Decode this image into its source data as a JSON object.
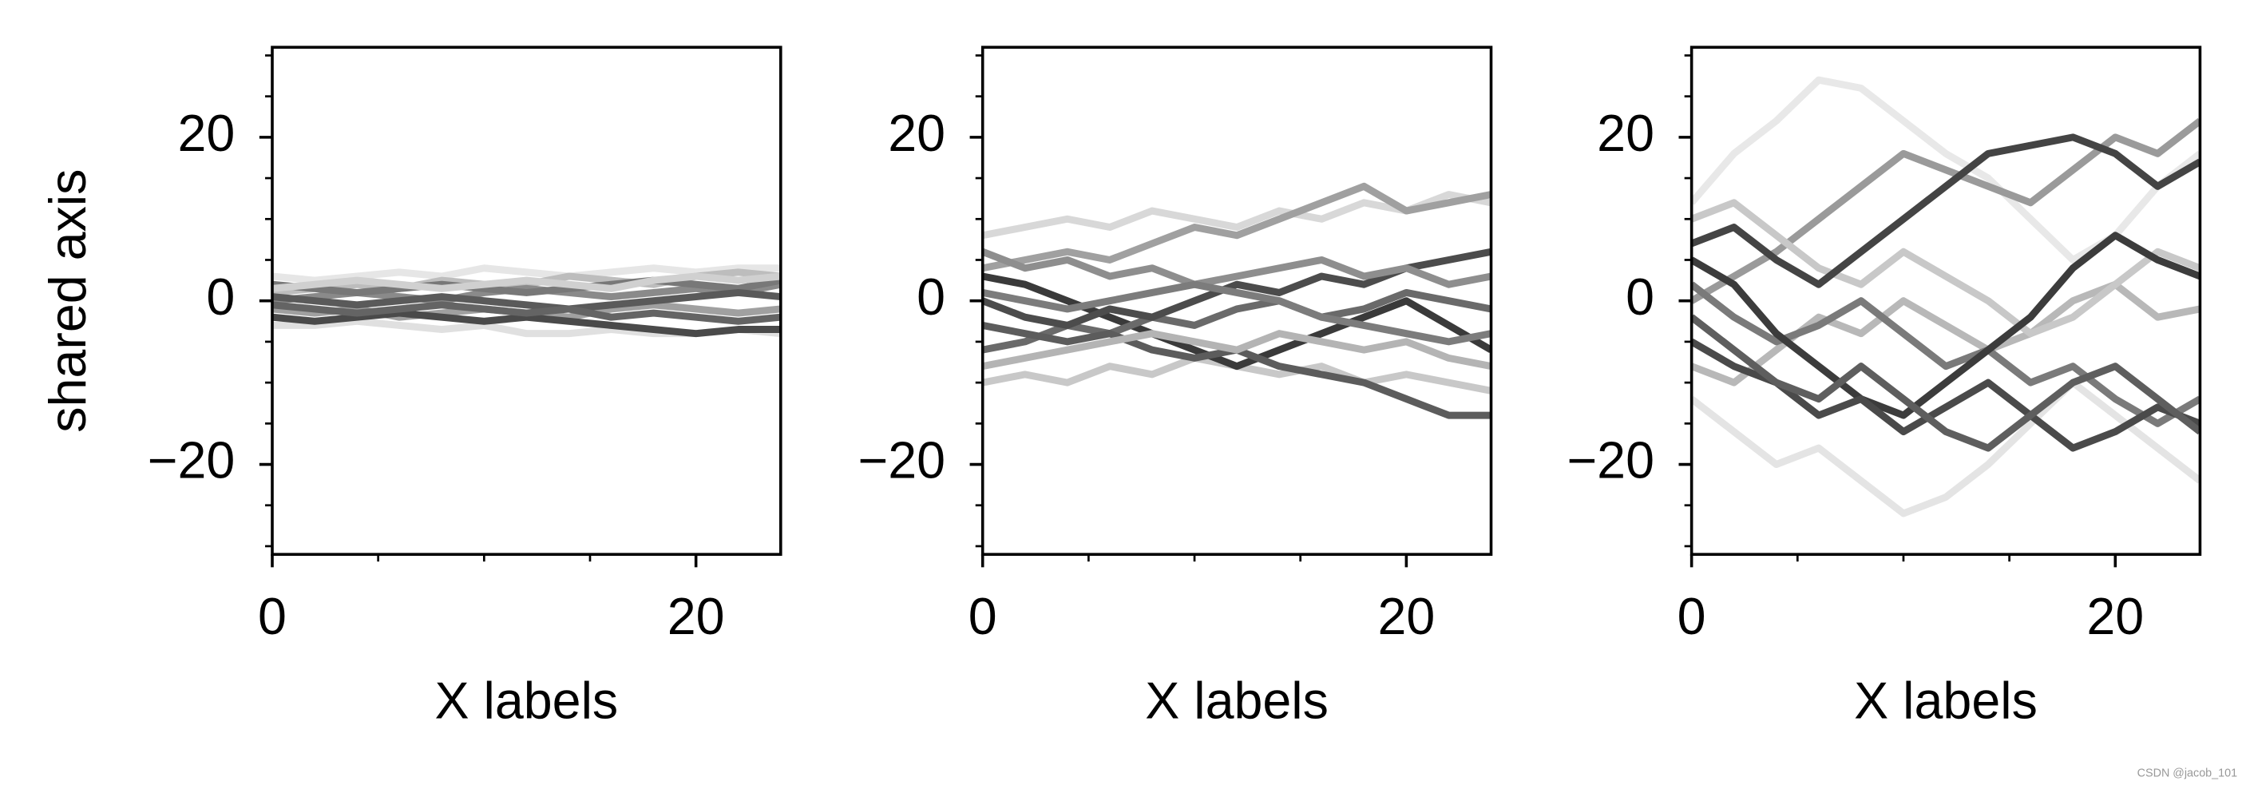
{
  "chart_data": [
    {
      "type": "line",
      "ylabel": "shared axis",
      "xlabel": "X labels",
      "x": [
        0,
        2,
        4,
        6,
        8,
        10,
        12,
        14,
        16,
        18,
        20,
        22,
        24
      ],
      "xlim": [
        0,
        24
      ],
      "ylim": [
        -31,
        31
      ],
      "xticks": [
        0,
        20
      ],
      "xticks_minor": [
        5,
        10,
        15
      ],
      "yticks": [
        {
          "value": -20,
          "label": "−20"
        },
        0,
        20
      ],
      "yticks_minor": [
        -30,
        -25,
        -15,
        -10,
        -5,
        5,
        10,
        15,
        25,
        30
      ],
      "series": [
        {
          "color": "#e6e6e6",
          "values": [
            3,
            2.5,
            3,
            3.5,
            3,
            4,
            3.5,
            3,
            3.5,
            4,
            3.5,
            4,
            4
          ]
        },
        {
          "color": "#e0e0e0",
          "values": [
            -3,
            -3,
            -2.5,
            -3,
            -3.5,
            -3,
            -4,
            -4,
            -3.5,
            -4,
            -4,
            -3.5,
            -4
          ]
        },
        {
          "color": "#bdbdbd",
          "values": [
            1,
            1.5,
            2,
            1.5,
            2.5,
            2,
            2,
            3,
            2.5,
            2,
            3,
            3.5,
            3
          ]
        },
        {
          "color": "#a0a0a0",
          "values": [
            -1,
            -1.5,
            -1,
            -2,
            -1.5,
            -1,
            -1.5,
            -2,
            -1,
            -0.5,
            -1,
            -1.5,
            -1
          ]
        },
        {
          "color": "#8a8a8a",
          "values": [
            0,
            0.5,
            1,
            0.5,
            0,
            1,
            1.5,
            1,
            0.5,
            1,
            1.5,
            1,
            2
          ]
        },
        {
          "color": "#787878",
          "values": [
            2,
            1.5,
            1,
            1.5,
            2,
            1.5,
            1,
            1.5,
            2,
            2.5,
            2,
            1.5,
            2.5
          ]
        },
        {
          "color": "#4a4a4a",
          "values": [
            -2,
            -2.5,
            -2,
            -1.5,
            -2,
            -2.5,
            -2,
            -2.5,
            -3,
            -3.5,
            -4,
            -3.5,
            -3.5
          ]
        },
        {
          "color": "#5a5a5a",
          "values": [
            0.5,
            0,
            -0.5,
            0,
            0.5,
            0,
            -0.5,
            -1,
            -0.5,
            0,
            0.5,
            1,
            0.5
          ]
        },
        {
          "color": "#646464",
          "values": [
            -0.5,
            -1,
            -1.5,
            -1,
            -0.5,
            -1,
            -1.5,
            -1,
            -2,
            -1.5,
            -2,
            -2.5,
            -2
          ]
        },
        {
          "color": "#d0d0d0",
          "values": [
            1.5,
            2,
            2.5,
            2,
            1.5,
            2,
            2.5,
            2,
            1.5,
            2.5,
            3,
            2.5,
            3
          ]
        }
      ]
    },
    {
      "type": "line",
      "xlabel": "X labels",
      "x": [
        0,
        2,
        4,
        6,
        8,
        10,
        12,
        14,
        16,
        18,
        20,
        22,
        24
      ],
      "xlim": [
        0,
        24
      ],
      "ylim": [
        -31,
        31
      ],
      "xticks": [
        0,
        20
      ],
      "xticks_minor": [
        5,
        10,
        15
      ],
      "yticks": [
        {
          "value": -20,
          "label": "−20"
        },
        0,
        20
      ],
      "yticks_minor": [
        -30,
        -25,
        -15,
        -10,
        -5,
        5,
        10,
        15,
        25,
        30
      ],
      "series": [
        {
          "color": "#d8d8d8",
          "values": [
            8,
            9,
            10,
            9,
            11,
            10,
            9,
            11,
            10,
            12,
            11,
            13,
            12
          ]
        },
        {
          "color": "#c8c8c8",
          "values": [
            -10,
            -9,
            -10,
            -8,
            -9,
            -7,
            -8,
            -9,
            -8,
            -10,
            -9,
            -10,
            -11
          ]
        },
        {
          "color": "#a0a0a0",
          "values": [
            4,
            5,
            6,
            5,
            7,
            9,
            8,
            10,
            12,
            14,
            11,
            12,
            13
          ]
        },
        {
          "color": "#3a3a3a",
          "values": [
            3,
            2,
            0,
            -2,
            -4,
            -6,
            -8,
            -6,
            -4,
            -2,
            0,
            -3,
            -6
          ]
        },
        {
          "color": "#6a6a6a",
          "values": [
            -6,
            -5,
            -3,
            -4,
            -2,
            -3,
            -1,
            0,
            -2,
            -1,
            1,
            0,
            -1
          ]
        },
        {
          "color": "#4c4c4c",
          "values": [
            0,
            -2,
            -3,
            -1,
            -2,
            0,
            2,
            1,
            3,
            2,
            4,
            5,
            6
          ]
        },
        {
          "color": "#5c5c5c",
          "values": [
            -3,
            -4,
            -5,
            -4,
            -6,
            -7,
            -6,
            -8,
            -9,
            -10,
            -12,
            -14,
            -14
          ]
        },
        {
          "color": "#8e8e8e",
          "values": [
            6,
            4,
            5,
            3,
            4,
            2,
            3,
            4,
            5,
            3,
            4,
            2,
            3
          ]
        },
        {
          "color": "#b4b4b4",
          "values": [
            -8,
            -7,
            -6,
            -5,
            -4,
            -5,
            -6,
            -4,
            -5,
            -6,
            -5,
            -7,
            -8
          ]
        },
        {
          "color": "#7c7c7c",
          "values": [
            1,
            0,
            -1,
            0,
            1,
            2,
            1,
            0,
            -2,
            -3,
            -4,
            -5,
            -4
          ]
        }
      ]
    },
    {
      "type": "line",
      "xlabel": "X labels",
      "x": [
        0,
        2,
        4,
        6,
        8,
        10,
        12,
        14,
        16,
        18,
        20,
        22,
        24
      ],
      "xlim": [
        0,
        24
      ],
      "ylim": [
        -31,
        31
      ],
      "xticks": [
        0,
        20
      ],
      "xticks_minor": [
        5,
        10,
        15
      ],
      "yticks": [
        {
          "value": -20,
          "label": "−20"
        },
        0,
        20
      ],
      "yticks_minor": [
        -30,
        -25,
        -15,
        -10,
        -5,
        5,
        10,
        15,
        25,
        30
      ],
      "series": [
        {
          "color": "#e8e8e8",
          "values": [
            12,
            18,
            22,
            27,
            26,
            22,
            18,
            15,
            10,
            5,
            8,
            14,
            18
          ]
        },
        {
          "color": "#e4e4e4",
          "values": [
            -12,
            -16,
            -20,
            -18,
            -22,
            -26,
            -24,
            -20,
            -15,
            -10,
            -14,
            -18,
            -22
          ]
        },
        {
          "color": "#9a9a9a",
          "values": [
            0,
            3,
            6,
            10,
            14,
            18,
            16,
            14,
            12,
            16,
            20,
            18,
            22
          ]
        },
        {
          "color": "#b8b8b8",
          "values": [
            -8,
            -10,
            -6,
            -2,
            -4,
            0,
            -3,
            -6,
            -4,
            0,
            2,
            -2,
            -1
          ]
        },
        {
          "color": "#c8c8c8",
          "values": [
            10,
            12,
            8,
            4,
            2,
            6,
            3,
            0,
            -4,
            -2,
            2,
            6,
            4
          ]
        },
        {
          "color": "#7a7a7a",
          "values": [
            2,
            -2,
            -5,
            -3,
            0,
            -4,
            -8,
            -6,
            -10,
            -8,
            -12,
            -15,
            -12
          ]
        },
        {
          "color": "#444444",
          "values": [
            7,
            9,
            5,
            2,
            6,
            10,
            14,
            18,
            19,
            20,
            18,
            14,
            17
          ]
        },
        {
          "color": "#3c3c3c",
          "values": [
            5,
            2,
            -4,
            -8,
            -12,
            -14,
            -10,
            -6,
            -2,
            4,
            8,
            5,
            3
          ]
        },
        {
          "color": "#4a4a4a",
          "values": [
            -5,
            -8,
            -10,
            -14,
            -12,
            -16,
            -13,
            -10,
            -14,
            -18,
            -16,
            -13,
            -15
          ]
        },
        {
          "color": "#5e5e5e",
          "values": [
            -2,
            -6,
            -10,
            -12,
            -8,
            -12,
            -16,
            -18,
            -14,
            -10,
            -8,
            -12,
            -16
          ]
        }
      ]
    }
  ],
  "watermark": "CSDN @jacob_101"
}
